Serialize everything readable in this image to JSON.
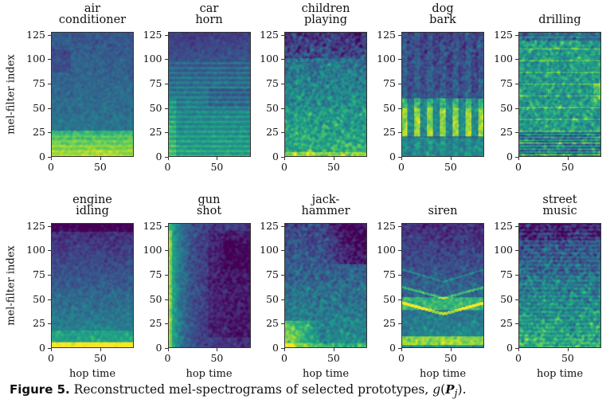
{
  "chart_data": {
    "type": "heatmap",
    "title": "Reconstructed mel-spectrograms of selected prototypes",
    "xlabel": "hop time",
    "ylabel": "mel-filter index",
    "xlim": [
      0,
      84
    ],
    "ylim": [
      0,
      128
    ],
    "xticks": [
      "0",
      "50"
    ],
    "yticks": [
      "0",
      "25",
      "50",
      "75",
      "100",
      "125"
    ],
    "xtick_values": [
      0,
      50
    ],
    "ytick_values": [
      0,
      25,
      50,
      75,
      100,
      125
    ],
    "colormap": "viridis",
    "panels": [
      {
        "title_lines": [
          "air",
          "conditioner"
        ],
        "pattern": "air_conditioner"
      },
      {
        "title_lines": [
          "car",
          "horn"
        ],
        "pattern": "car_horn"
      },
      {
        "title_lines": [
          "children",
          "playing"
        ],
        "pattern": "children_playing"
      },
      {
        "title_lines": [
          "dog",
          "bark"
        ],
        "pattern": "dog_bark"
      },
      {
        "title_lines": [
          "drilling",
          ""
        ],
        "pattern": "drilling"
      },
      {
        "title_lines": [
          "engine",
          "idling"
        ],
        "pattern": "engine_idling"
      },
      {
        "title_lines": [
          "gun",
          "shot"
        ],
        "pattern": "gun_shot"
      },
      {
        "title_lines": [
          "jack-",
          "hammer"
        ],
        "pattern": "jackhammer"
      },
      {
        "title_lines": [
          "siren",
          ""
        ],
        "pattern": "siren"
      },
      {
        "title_lines": [
          "street",
          "music"
        ],
        "pattern": "street_music"
      }
    ]
  },
  "caption": {
    "label": "Figure 5.",
    "text": "Reconstructed mel-spectrograms of selected prototypes, ",
    "math_func": "g",
    "math_arg": "P",
    "math_sub": "j",
    "math_end": ")."
  }
}
